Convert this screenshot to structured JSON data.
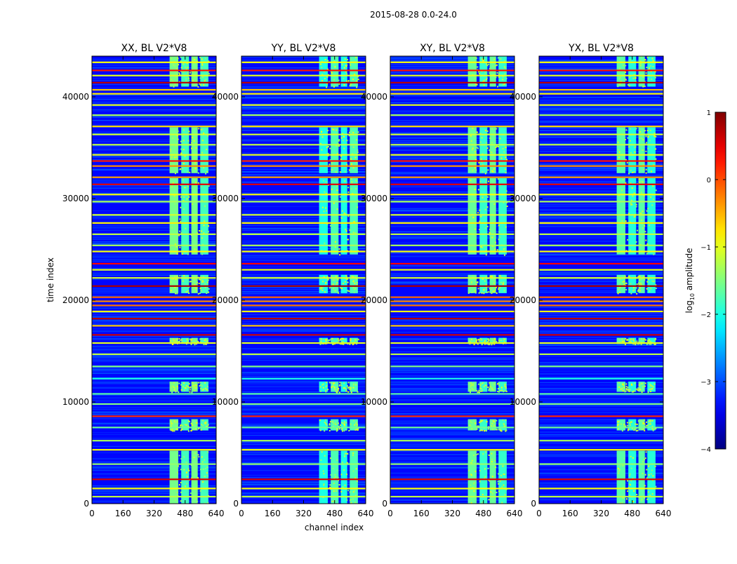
{
  "figure": {
    "suptitle": "2015-08-28 0.0-24.0"
  },
  "chart_data": {
    "type": "heatmap",
    "xlabel": "channel index",
    "ylabel": "time index",
    "xlim": [
      0,
      640
    ],
    "ylim": [
      0,
      44000
    ],
    "xticks": [
      0,
      160,
      320,
      480,
      640
    ],
    "yticks": [
      0,
      10000,
      20000,
      30000,
      40000
    ],
    "panels": [
      {
        "title": "XX, BL V2*V8",
        "stripe_phase": 0.0
      },
      {
        "title": "YY, BL V2*V8",
        "stripe_phase": 0.6
      },
      {
        "title": "XY, BL V2*V8",
        "stripe_phase": 0.1
      },
      {
        "title": "YX, BL V2*V8",
        "stripe_phase": 0.2
      }
    ],
    "rfi_channel_range": [
      400,
      600
    ],
    "rfi_channel_gaps": [
      [
        445,
        460
      ],
      [
        500,
        512
      ],
      [
        545,
        558
      ]
    ],
    "rfi_time_blocks": [
      [
        0,
        5200
      ],
      [
        7200,
        8300
      ],
      [
        11000,
        12000
      ],
      [
        15700,
        16300
      ],
      [
        20700,
        22500
      ],
      [
        24500,
        32000
      ],
      [
        32500,
        37000
      ],
      [
        41000,
        44000
      ]
    ],
    "horizontal_lines": [
      {
        "t": 2400,
        "level": 0.55
      },
      {
        "t": 1500,
        "level": -0.9
      },
      {
        "t": 700,
        "level": -1.2
      },
      {
        "t": 3900,
        "level": -1.4
      },
      {
        "t": 5300,
        "level": -0.9
      },
      {
        "t": 6200,
        "level": -1.3
      },
      {
        "t": 7500,
        "level": -1.6
      },
      {
        "t": 8600,
        "level": 0.2
      },
      {
        "t": 9800,
        "level": -1.5
      },
      {
        "t": 10800,
        "level": -1.7
      },
      {
        "t": 12300,
        "level": -2.0
      },
      {
        "t": 13500,
        "level": -1.5
      },
      {
        "t": 14700,
        "level": -1.2
      },
      {
        "t": 15800,
        "level": -1.0
      },
      {
        "t": 16600,
        "level": 0.6
      },
      {
        "t": 17500,
        "level": -0.6
      },
      {
        "t": 18200,
        "level": 0.7
      },
      {
        "t": 18900,
        "level": -0.9
      },
      {
        "t": 19500,
        "level": -0.2
      },
      {
        "t": 19900,
        "level": -0.3
      },
      {
        "t": 20300,
        "level": -0.1
      },
      {
        "t": 21400,
        "level": 0.8
      },
      {
        "t": 22200,
        "level": -1.1
      },
      {
        "t": 23000,
        "level": -1.0
      },
      {
        "t": 23600,
        "level": 0.4
      },
      {
        "t": 24800,
        "level": -0.9
      },
      {
        "t": 25400,
        "level": -1.3
      },
      {
        "t": 26500,
        "level": -1.2
      },
      {
        "t": 27600,
        "level": -0.8
      },
      {
        "t": 28400,
        "level": -1.1
      },
      {
        "t": 29700,
        "level": -1.3
      },
      {
        "t": 30400,
        "level": -0.9
      },
      {
        "t": 31400,
        "level": 0.5
      },
      {
        "t": 32100,
        "level": -0.4
      },
      {
        "t": 33200,
        "level": -0.3
      },
      {
        "t": 33700,
        "level": 0.3
      },
      {
        "t": 34300,
        "level": -1.0
      },
      {
        "t": 35300,
        "level": -1.2
      },
      {
        "t": 36300,
        "level": -1.1
      },
      {
        "t": 37100,
        "level": -0.7
      },
      {
        "t": 38200,
        "level": -1.3
      },
      {
        "t": 39200,
        "level": -1.0
      },
      {
        "t": 40300,
        "level": -0.8
      },
      {
        "t": 40700,
        "level": -0.6
      },
      {
        "t": 41400,
        "level": 0.7
      },
      {
        "t": 42100,
        "level": -1.0
      },
      {
        "t": 42600,
        "level": 0.3
      },
      {
        "t": 43400,
        "level": -0.9
      }
    ],
    "colorbar": {
      "label": "log10 amplitude",
      "label_base": "log",
      "label_sub": "10",
      "label_rest": " amplitude",
      "vmin": -4,
      "vmax": 1,
      "ticks": [
        1,
        0,
        -1,
        -2,
        -3,
        -4
      ],
      "tick_labels": [
        "1",
        "0",
        "−1",
        "−2",
        "−3",
        "−4"
      ],
      "colormap": "jet"
    }
  }
}
